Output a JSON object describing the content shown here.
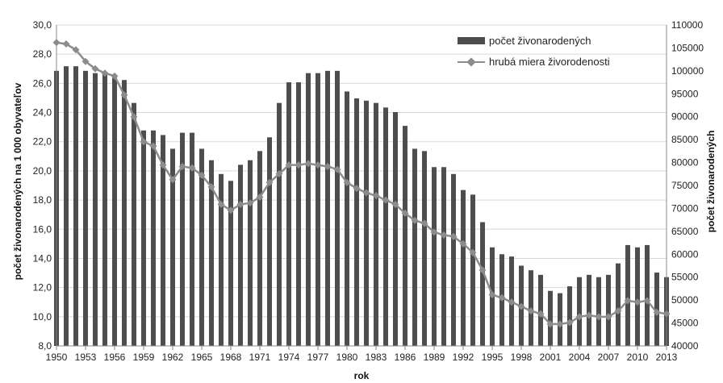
{
  "chart_data": {
    "type": "bar",
    "title": "",
    "xlabel": "rok",
    "ylabel_left": "počet živonarodených na 1 000 obyvateľov",
    "ylabel_right": "počet živonarodených",
    "x": [
      1950,
      1951,
      1952,
      1953,
      1954,
      1955,
      1956,
      1957,
      1958,
      1959,
      1960,
      1961,
      1962,
      1963,
      1964,
      1965,
      1966,
      1967,
      1968,
      1969,
      1970,
      1971,
      1972,
      1973,
      1974,
      1975,
      1976,
      1977,
      1978,
      1979,
      1980,
      1981,
      1982,
      1983,
      1984,
      1985,
      1986,
      1987,
      1988,
      1989,
      1990,
      1991,
      1992,
      1993,
      1994,
      1995,
      1996,
      1997,
      1998,
      1999,
      2000,
      2001,
      2002,
      2003,
      2004,
      2005,
      2006,
      2007,
      2008,
      2009,
      2010,
      2011,
      2012,
      2013
    ],
    "x_ticks": [
      "1950",
      "1953",
      "1956",
      "1959",
      "1962",
      "1965",
      "1968",
      "1971",
      "1974",
      "1977",
      "1980",
      "1983",
      "1986",
      "1989",
      "1992",
      "1995",
      "1998",
      "2001",
      "2004",
      "2007",
      "2010",
      "2013"
    ],
    "y_left_ticks": [
      "8,0",
      "10,0",
      "12,0",
      "14,0",
      "16,0",
      "18,0",
      "20,0",
      "22,0",
      "24,0",
      "26,0",
      "28,0",
      "30,0"
    ],
    "y_right_ticks": [
      "40000",
      "45000",
      "50000",
      "55000",
      "60000",
      "65000",
      "70000",
      "75000",
      "80000",
      "85000",
      "90000",
      "95000",
      "100000",
      "105000",
      "110000"
    ],
    "ylim_left": [
      8,
      30
    ],
    "ylim_right": [
      40000,
      110000
    ],
    "grid": true,
    "legend_position": "top-right",
    "series": [
      {
        "name": "počet živonarodených",
        "type": "bar",
        "axis": "right",
        "color": "#4d4d4d",
        "values": [
          100000,
          101000,
          101000,
          100000,
          99500,
          99500,
          98500,
          98000,
          93000,
          87000,
          87000,
          86000,
          83000,
          86500,
          86500,
          83000,
          80500,
          77500,
          76000,
          79500,
          80500,
          82500,
          85500,
          93000,
          97500,
          97500,
          99500,
          99500,
          100000,
          100000,
          95500,
          94000,
          93500,
          93000,
          92000,
          91000,
          88000,
          83000,
          82500,
          79000,
          79000,
          77500,
          74000,
          73000,
          67000,
          61500,
          60000,
          59500,
          57500,
          56500,
          55500,
          52000,
          51500,
          53000,
          55000,
          55500,
          55000,
          55500,
          58000,
          62000,
          61500,
          62000,
          56000,
          55000
        ]
      },
      {
        "name": "hrubá miera živorodenosti",
        "type": "line",
        "axis": "left",
        "color": "#8c8c8c",
        "values": [
          28.8,
          28.7,
          28.3,
          27.5,
          27.0,
          26.7,
          26.5,
          25.2,
          23.7,
          22.0,
          21.7,
          20.4,
          19.4,
          20.3,
          20.2,
          19.7,
          18.9,
          17.7,
          17.3,
          17.7,
          17.8,
          18.2,
          19.2,
          19.8,
          20.4,
          20.4,
          20.5,
          20.4,
          20.3,
          20.1,
          19.2,
          18.8,
          18.5,
          18.3,
          18.0,
          17.7,
          17.1,
          16.6,
          16.4,
          15.8,
          15.6,
          15.5,
          15.0,
          14.4,
          13.2,
          11.5,
          11.3,
          11.0,
          10.7,
          10.4,
          10.2,
          9.5,
          9.5,
          9.6,
          10.0,
          10.1,
          10.0,
          10.0,
          10.4,
          11.1,
          11.0,
          11.1,
          10.3,
          10.2
        ]
      }
    ]
  }
}
